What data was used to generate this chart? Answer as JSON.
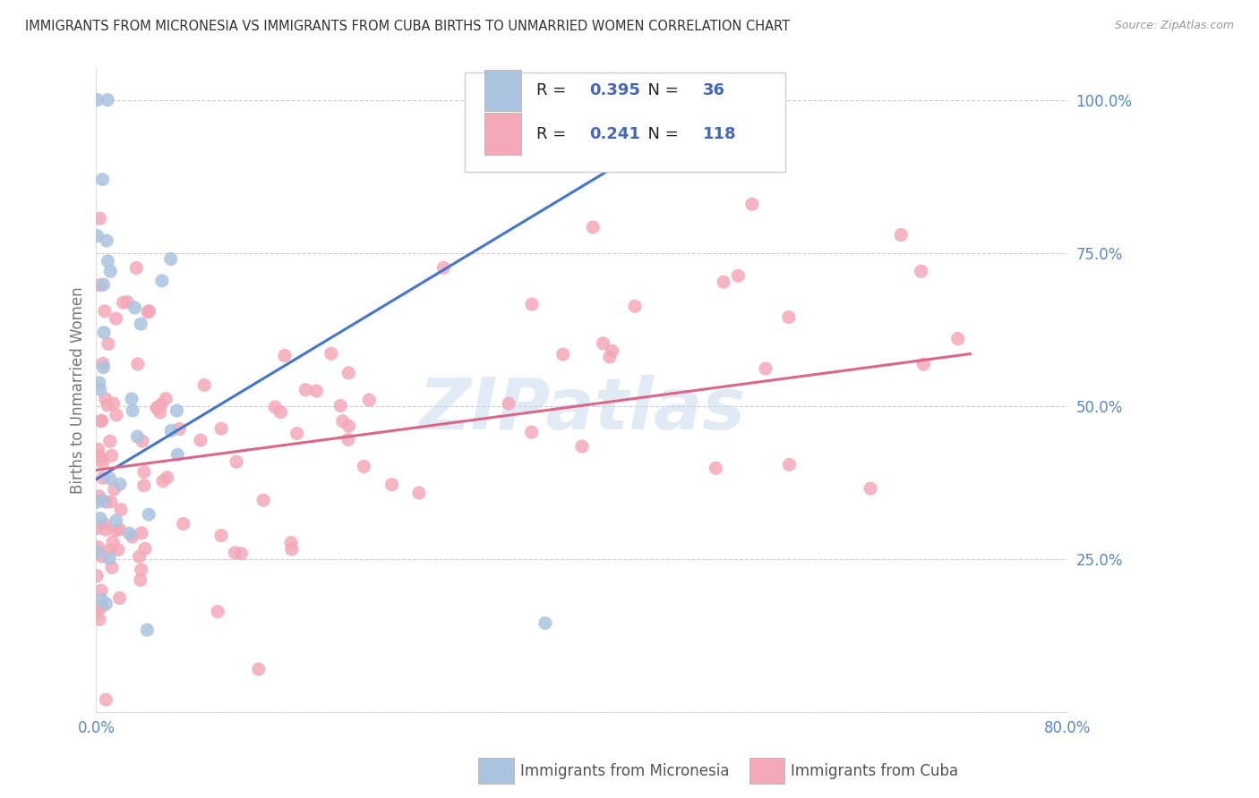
{
  "title": "IMMIGRANTS FROM MICRONESIA VS IMMIGRANTS FROM CUBA BIRTHS TO UNMARRIED WOMEN CORRELATION CHART",
  "source": "Source: ZipAtlas.com",
  "ylabel": "Births to Unmarried Women",
  "x_min": 0.0,
  "x_max": 0.8,
  "y_min": 0.0,
  "y_max": 1.05,
  "x_tick_positions": [
    0.0,
    0.2,
    0.4,
    0.6,
    0.8
  ],
  "x_tick_labels": [
    "0.0%",
    "",
    "",
    "",
    "80.0%"
  ],
  "y_tick_positions": [
    0.0,
    0.25,
    0.5,
    0.75,
    1.0
  ],
  "y_tick_labels": [
    "",
    "25.0%",
    "50.0%",
    "75.0%",
    "100.0%"
  ],
  "micronesia_color": "#aac4e0",
  "cuba_color": "#f4a8b8",
  "micronesia_line_color": "#4477cc",
  "cuba_line_color": "#dd6688",
  "legend_text_color": "#4466bb",
  "R_micronesia": 0.395,
  "N_micronesia": 36,
  "R_cuba": 0.241,
  "N_cuba": 118,
  "watermark": "ZIPatlas",
  "background_color": "#ffffff",
  "grid_color": "#cccccc",
  "axis_label_color": "#5588cc",
  "title_color": "#333333",
  "mic_line_x0": 0.0,
  "mic_line_y0": 0.38,
  "mic_line_x1": 0.46,
  "mic_line_y1": 0.93,
  "cuba_line_x0": 0.0,
  "cuba_line_y0": 0.395,
  "cuba_line_x1": 0.72,
  "cuba_line_y1": 0.585
}
